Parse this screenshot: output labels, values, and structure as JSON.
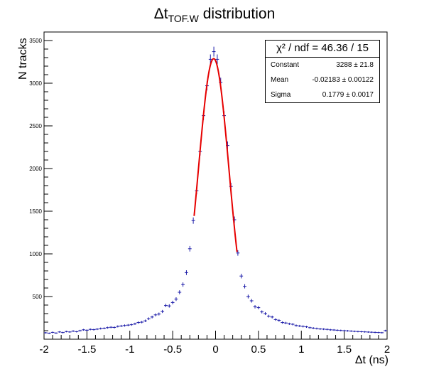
{
  "title": {
    "prefix": "Δt",
    "sub": "TOF.W",
    "suffix": " distribution"
  },
  "stats": {
    "header": "χ² / ndf = 46.36 / 15",
    "rows": [
      {
        "label": "Constant",
        "value": "3288 ± 21.8"
      },
      {
        "label": "Mean",
        "value": "-0.02183 ± 0.00122"
      },
      {
        "label": "Sigma",
        "value": "0.1779 ± 0.0017"
      }
    ]
  },
  "colors": {
    "data": "#1a1aa8",
    "fit": "#e60000",
    "axis": "#000000"
  },
  "chart_data": {
    "type": "scatter",
    "xlabel": "Δt (ns)",
    "ylabel": "N tracks",
    "xlim": [
      -2,
      2
    ],
    "ylim": [
      0,
      3600
    ],
    "xticks": [
      "-2",
      "-1.5",
      "-1",
      "-0.5",
      "0",
      "0.5",
      "1",
      "1.5",
      "2"
    ],
    "yticks": [
      "500",
      "1000",
      "1500",
      "2000",
      "2500",
      "3000",
      "3500"
    ],
    "grid": false,
    "series": [
      {
        "x": [
          -1.98,
          -1.94,
          -1.9,
          -1.86,
          -1.82,
          -1.78,
          -1.74,
          -1.7,
          -1.66,
          -1.62,
          -1.58,
          -1.54,
          -1.5,
          -1.46,
          -1.42,
          -1.38,
          -1.34,
          -1.3,
          -1.26,
          -1.22,
          -1.18,
          -1.14,
          -1.1,
          -1.06,
          -1.02,
          -0.98,
          -0.94,
          -0.9,
          -0.86,
          -0.82,
          -0.78,
          -0.74,
          -0.7,
          -0.66,
          -0.62,
          -0.58,
          -0.54,
          -0.5,
          -0.46,
          -0.42,
          -0.38,
          -0.34,
          -0.3,
          -0.26,
          -0.22,
          -0.18,
          -0.14,
          -0.1,
          -0.06,
          -0.02,
          0.02,
          0.06,
          0.1,
          0.14,
          0.18,
          0.22,
          0.26,
          0.3,
          0.34,
          0.38,
          0.42,
          0.46,
          0.5,
          0.54,
          0.58,
          0.62,
          0.66,
          0.7,
          0.74,
          0.78,
          0.82,
          0.86,
          0.9,
          0.94,
          0.98,
          1.02,
          1.06,
          1.1,
          1.14,
          1.18,
          1.22,
          1.26,
          1.3,
          1.34,
          1.38,
          1.42,
          1.46,
          1.5,
          1.54,
          1.58,
          1.62,
          1.66,
          1.7,
          1.74,
          1.78,
          1.82,
          1.86,
          1.9,
          1.94,
          1.98
        ],
        "y": [
          75,
          70,
          80,
          72,
          85,
          78,
          90,
          85,
          95,
          88,
          100,
          110,
          105,
          115,
          112,
          118,
          125,
          128,
          135,
          140,
          138,
          150,
          155,
          160,
          165,
          170,
          180,
          195,
          200,
          215,
          240,
          260,
          285,
          295,
          325,
          395,
          390,
          430,
          470,
          550,
          640,
          780,
          1060,
          1390,
          1740,
          2200,
          2620,
          2970,
          3280,
          3370,
          3280,
          3010,
          2620,
          2270,
          1790,
          1400,
          1010,
          740,
          620,
          500,
          450,
          380,
          370,
          320,
          300,
          270,
          260,
          230,
          220,
          195,
          190,
          180,
          175,
          160,
          155,
          150,
          145,
          135,
          130,
          125,
          120,
          118,
          115,
          110,
          108,
          105,
          102,
          100,
          98,
          95,
          92,
          90,
          88,
          86,
          84,
          82,
          80,
          78,
          76,
          100
        ]
      },
      {
        "name": "",
        "fit": {
          "constant": 3288,
          "mean": -0.02183,
          "sigma": 0.1779,
          "range": [
            -0.25,
            0.25
          ]
        }
      }
    ]
  }
}
